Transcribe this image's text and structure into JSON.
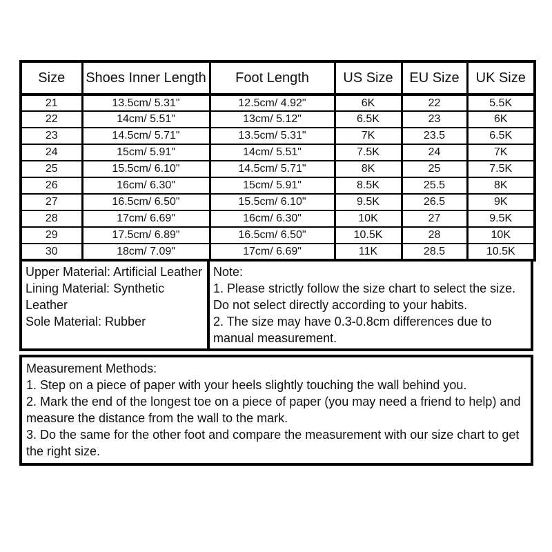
{
  "page": {
    "background": "#ffffff",
    "border_color": "#000000",
    "text_color": "#111111"
  },
  "size_table": {
    "headers": [
      "Size",
      "Shoes Inner Length",
      "Foot Length",
      "US Size",
      "EU Size",
      "UK Size"
    ],
    "rows": [
      [
        "21",
        "13.5cm/ 5.31\"",
        "12.5cm/ 4.92\"",
        "6K",
        "22",
        "5.5K"
      ],
      [
        "22",
        "14cm/ 5.51\"",
        "13cm/ 5.12\"",
        "6.5K",
        "23",
        "6K"
      ],
      [
        "23",
        "14.5cm/ 5.71\"",
        "13.5cm/ 5.31\"",
        "7K",
        "23.5",
        "6.5K"
      ],
      [
        "24",
        "15cm/ 5.91\"",
        "14cm/ 5.51\"",
        "7.5K",
        "24",
        "7K"
      ],
      [
        "25",
        "15.5cm/ 6.10\"",
        "14.5cm/ 5.71\"",
        "8K",
        "25",
        "7.5K"
      ],
      [
        "26",
        "16cm/ 6.30\"",
        "15cm/ 5.91\"",
        "8.5K",
        "25.5",
        "8K"
      ],
      [
        "27",
        "16.5cm/ 6.50\"",
        "15.5cm/ 6.10\"",
        "9.5K",
        "26.5",
        "9K"
      ],
      [
        "28",
        "17cm/ 6.69\"",
        "16cm/ 6.30\"",
        "10K",
        "27",
        "9.5K"
      ],
      [
        "29",
        "17.5cm/ 6.89\"",
        "16.5cm/ 6.50\"",
        "10.5K",
        "28",
        "10K"
      ],
      [
        "30",
        "18cm/ 7.09\"",
        "17cm/ 6.69\"",
        "11K",
        "28.5",
        "10.5K"
      ]
    ]
  },
  "materials": {
    "lines": [
      "Upper Material: Artificial Leather",
      "Lining Material: Synthetic Leather",
      "Sole Material: Rubber"
    ]
  },
  "note": {
    "lines": [
      "Note:",
      "1. Please strictly follow the size chart to select the size. Do not select directly according to your habits.",
      "2. The size may have 0.3-0.8cm differences due to manual measurement."
    ]
  },
  "measurement": {
    "lines": [
      "Measurement Methods:",
      "1. Step on a piece of paper with your heels slightly touching the wall behind you.",
      "2. Mark the end of the longest toe on a piece of paper (you may need a friend to help) and measure the distance from the wall to the mark.",
      "3. Do the same for the other foot and compare the measurement with our size chart to get the right size."
    ]
  }
}
